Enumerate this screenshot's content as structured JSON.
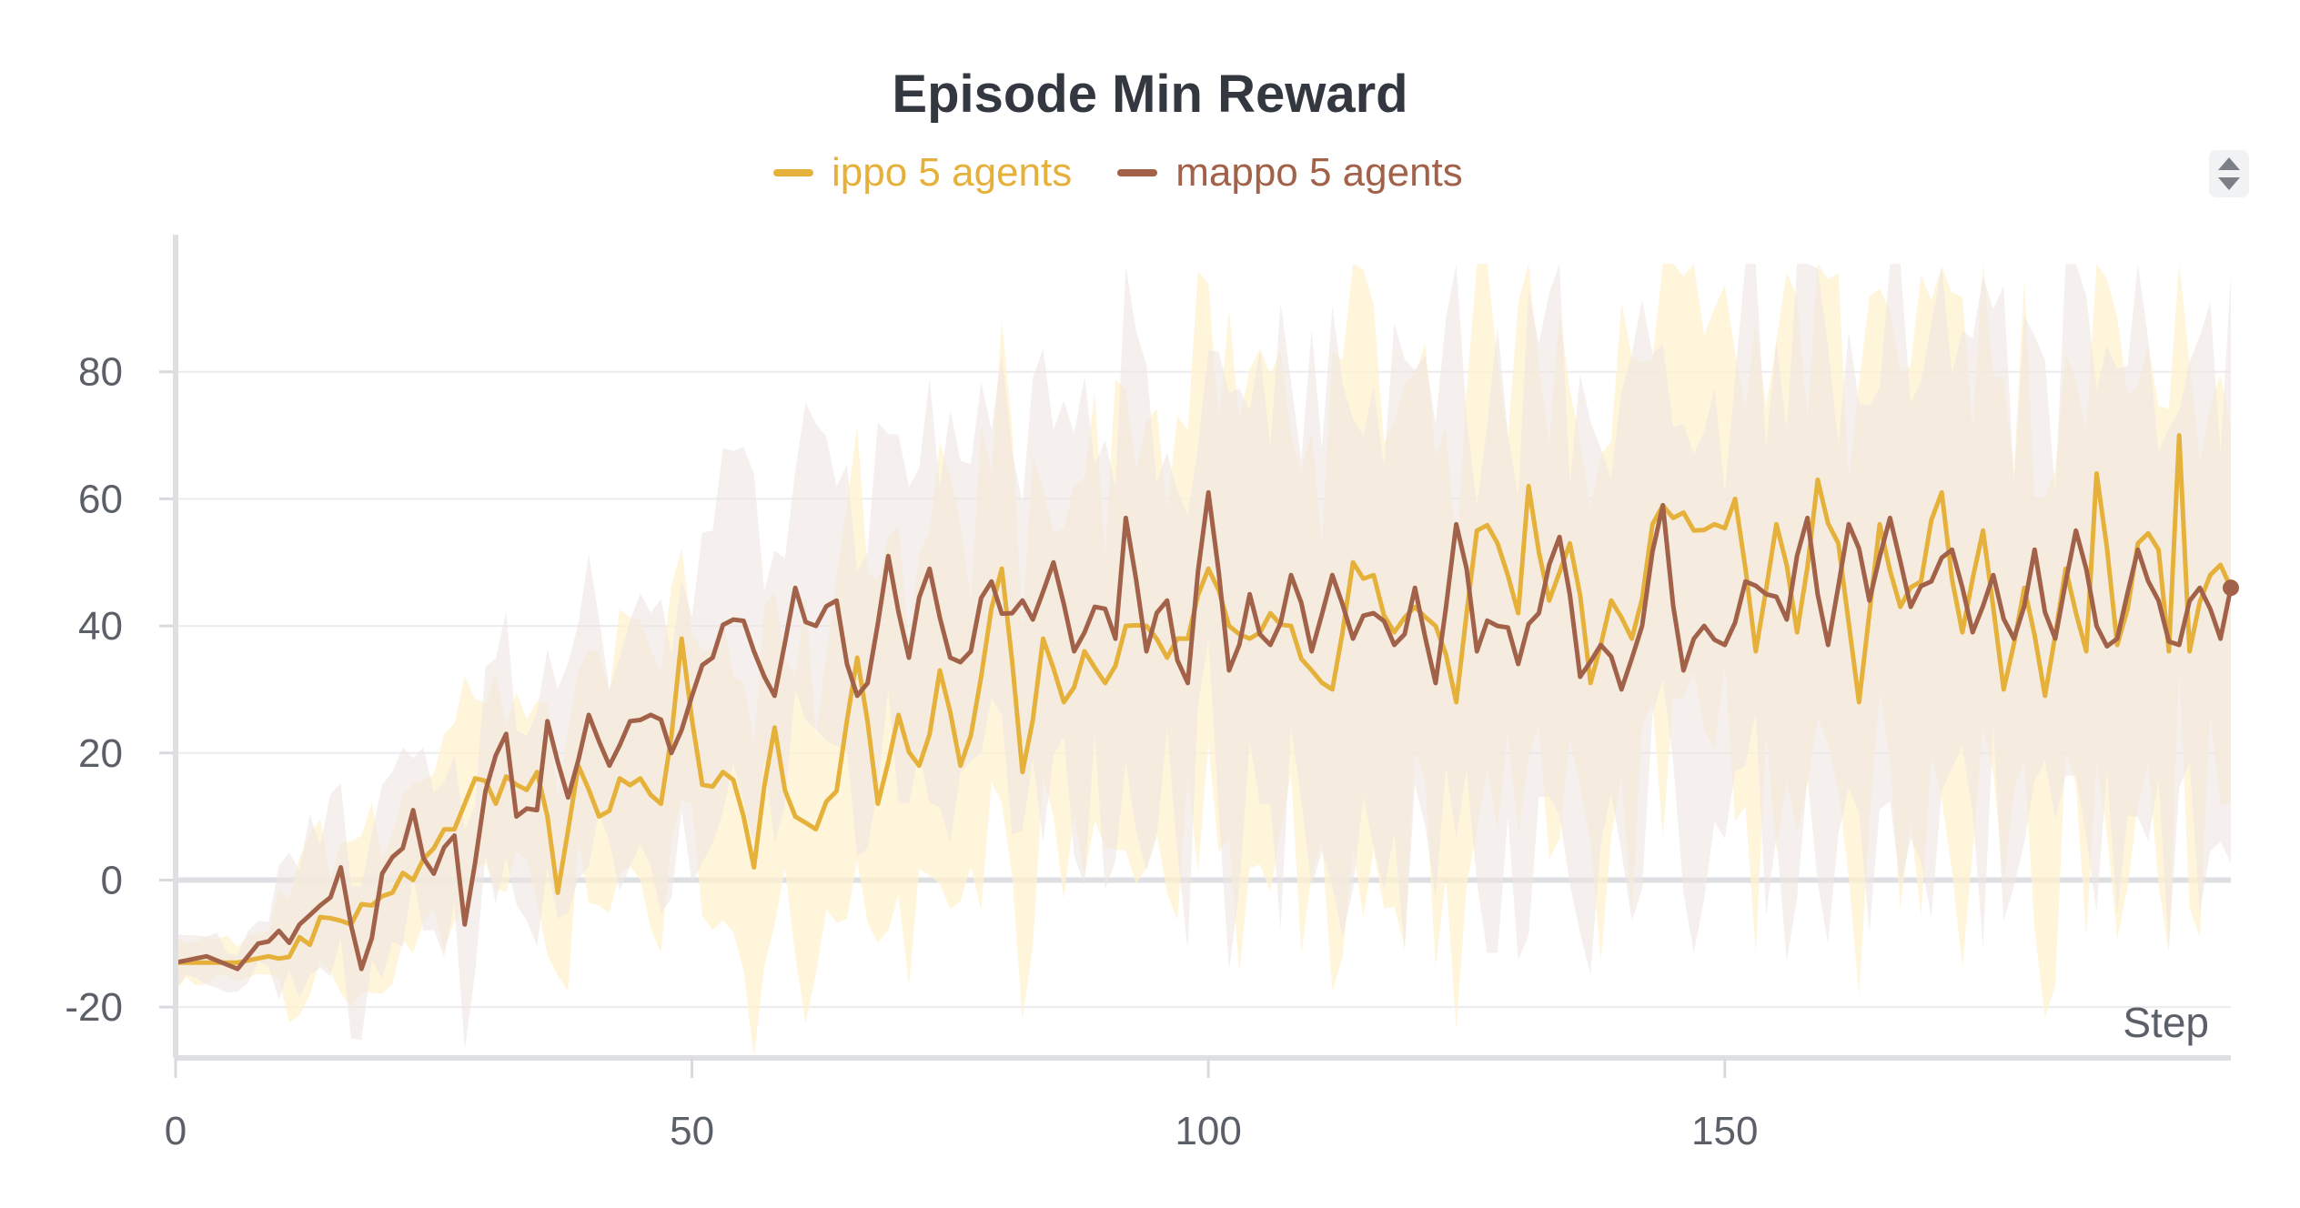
{
  "chart_data": {
    "type": "line",
    "title": "Episode Min Reward",
    "xlabel": "Step",
    "ylabel": "",
    "xlim": [
      0,
      199
    ],
    "ylim": [
      -28,
      97
    ],
    "x_ticks": [
      0,
      50,
      100,
      150
    ],
    "y_ticks": [
      -20,
      0,
      20,
      40,
      60,
      80
    ],
    "y_tick_labels": [
      "-20",
      "0",
      "20",
      "40",
      "60",
      "80"
    ],
    "grid": true,
    "legend_position": "top-center",
    "x_step_range": [
      0,
      199
    ],
    "series": [
      {
        "name": "ippo 5 agents",
        "color": "#e6b13a",
        "band_color": "#fdf1cf",
        "keypoints": [
          [
            0,
            -13
          ],
          [
            3,
            -13
          ],
          [
            6,
            -13
          ],
          [
            9,
            -12
          ],
          [
            12,
            -9
          ],
          [
            15,
            -6
          ],
          [
            17,
            -7
          ],
          [
            19,
            -4
          ],
          [
            21,
            -2
          ],
          [
            23,
            0
          ],
          [
            25,
            5
          ],
          [
            27,
            8
          ],
          [
            29,
            16
          ],
          [
            31,
            12
          ],
          [
            33,
            15
          ],
          [
            35,
            17
          ],
          [
            37,
            -2
          ],
          [
            39,
            18
          ],
          [
            41,
            10
          ],
          [
            43,
            16
          ],
          [
            45,
            16
          ],
          [
            47,
            12
          ],
          [
            49,
            38
          ],
          [
            51,
            15
          ],
          [
            53,
            17
          ],
          [
            55,
            10
          ],
          [
            56,
            2
          ],
          [
            58,
            24
          ],
          [
            60,
            10
          ],
          [
            62,
            8
          ],
          [
            64,
            14
          ],
          [
            66,
            35
          ],
          [
            68,
            12
          ],
          [
            70,
            26
          ],
          [
            72,
            18
          ],
          [
            74,
            33
          ],
          [
            76,
            18
          ],
          [
            78,
            32
          ],
          [
            80,
            49
          ],
          [
            82,
            17
          ],
          [
            84,
            38
          ],
          [
            86,
            28
          ],
          [
            88,
            36
          ],
          [
            90,
            31
          ],
          [
            92,
            40
          ],
          [
            94,
            40
          ],
          [
            96,
            35
          ],
          [
            98,
            38
          ],
          [
            100,
            49
          ],
          [
            102,
            40
          ],
          [
            104,
            38
          ],
          [
            106,
            42
          ],
          [
            108,
            40
          ],
          [
            110,
            33
          ],
          [
            112,
            30
          ],
          [
            114,
            50
          ],
          [
            116,
            48
          ],
          [
            118,
            39
          ],
          [
            120,
            43
          ],
          [
            122,
            40
          ],
          [
            124,
            28
          ],
          [
            126,
            55
          ],
          [
            128,
            53
          ],
          [
            130,
            42
          ],
          [
            131,
            62
          ],
          [
            133,
            44
          ],
          [
            135,
            53
          ],
          [
            137,
            31
          ],
          [
            139,
            44
          ],
          [
            141,
            38
          ],
          [
            143,
            56
          ],
          [
            145,
            57
          ],
          [
            147,
            55
          ],
          [
            149,
            56
          ],
          [
            151,
            60
          ],
          [
            153,
            36
          ],
          [
            155,
            56
          ],
          [
            157,
            39
          ],
          [
            159,
            63
          ],
          [
            161,
            53
          ],
          [
            163,
            28
          ],
          [
            165,
            56
          ],
          [
            167,
            43
          ],
          [
            169,
            47
          ],
          [
            171,
            61
          ],
          [
            173,
            39
          ],
          [
            175,
            55
          ],
          [
            177,
            30
          ],
          [
            179,
            46
          ],
          [
            181,
            29
          ],
          [
            183,
            49
          ],
          [
            185,
            36
          ],
          [
            186,
            64
          ],
          [
            188,
            37
          ],
          [
            190,
            53
          ],
          [
            192,
            52
          ],
          [
            193,
            36
          ],
          [
            194,
            70
          ],
          [
            195,
            36
          ],
          [
            197,
            48
          ],
          [
            199,
            46
          ]
        ]
      },
      {
        "name": "mappo 5 agents",
        "color": "#a2624a",
        "band_color": "#efe6e1",
        "keypoints": [
          [
            0,
            -13
          ],
          [
            3,
            -12
          ],
          [
            6,
            -14
          ],
          [
            8,
            -10
          ],
          [
            10,
            -8
          ],
          [
            12,
            -7
          ],
          [
            14,
            -4
          ],
          [
            16,
            2
          ],
          [
            18,
            -14
          ],
          [
            20,
            1
          ],
          [
            22,
            5
          ],
          [
            23,
            11
          ],
          [
            25,
            1
          ],
          [
            27,
            7
          ],
          [
            28,
            -7
          ],
          [
            30,
            14
          ],
          [
            32,
            23
          ],
          [
            33,
            10
          ],
          [
            35,
            11
          ],
          [
            36,
            25
          ],
          [
            38,
            13
          ],
          [
            40,
            26
          ],
          [
            42,
            18
          ],
          [
            44,
            25
          ],
          [
            46,
            26
          ],
          [
            48,
            20
          ],
          [
            50,
            29
          ],
          [
            52,
            35
          ],
          [
            54,
            41
          ],
          [
            56,
            36
          ],
          [
            58,
            29
          ],
          [
            60,
            46
          ],
          [
            62,
            40
          ],
          [
            64,
            44
          ],
          [
            66,
            29
          ],
          [
            67,
            31
          ],
          [
            69,
            51
          ],
          [
            71,
            35
          ],
          [
            73,
            49
          ],
          [
            75,
            35
          ],
          [
            77,
            36
          ],
          [
            79,
            47
          ],
          [
            81,
            42
          ],
          [
            83,
            41
          ],
          [
            85,
            50
          ],
          [
            87,
            36
          ],
          [
            89,
            43
          ],
          [
            91,
            38
          ],
          [
            92,
            57
          ],
          [
            94,
            36
          ],
          [
            96,
            44
          ],
          [
            98,
            31
          ],
          [
            100,
            61
          ],
          [
            102,
            33
          ],
          [
            104,
            45
          ],
          [
            106,
            37
          ],
          [
            108,
            48
          ],
          [
            110,
            36
          ],
          [
            112,
            48
          ],
          [
            114,
            38
          ],
          [
            116,
            42
          ],
          [
            118,
            37
          ],
          [
            120,
            46
          ],
          [
            122,
            31
          ],
          [
            124,
            56
          ],
          [
            126,
            36
          ],
          [
            128,
            40
          ],
          [
            130,
            34
          ],
          [
            132,
            42
          ],
          [
            134,
            54
          ],
          [
            136,
            32
          ],
          [
            138,
            37
          ],
          [
            140,
            30
          ],
          [
            142,
            40
          ],
          [
            144,
            59
          ],
          [
            146,
            33
          ],
          [
            148,
            40
          ],
          [
            150,
            37
          ],
          [
            152,
            47
          ],
          [
            154,
            45
          ],
          [
            156,
            41
          ],
          [
            158,
            57
          ],
          [
            160,
            37
          ],
          [
            162,
            56
          ],
          [
            164,
            44
          ],
          [
            166,
            57
          ],
          [
            168,
            43
          ],
          [
            170,
            47
          ],
          [
            172,
            52
          ],
          [
            174,
            39
          ],
          [
            176,
            48
          ],
          [
            178,
            38
          ],
          [
            180,
            52
          ],
          [
            182,
            38
          ],
          [
            184,
            55
          ],
          [
            186,
            40
          ],
          [
            188,
            38
          ],
          [
            190,
            52
          ],
          [
            192,
            44
          ],
          [
            194,
            37
          ],
          [
            196,
            46
          ],
          [
            198,
            38
          ],
          [
            199,
            46
          ]
        ]
      }
    ]
  }
}
